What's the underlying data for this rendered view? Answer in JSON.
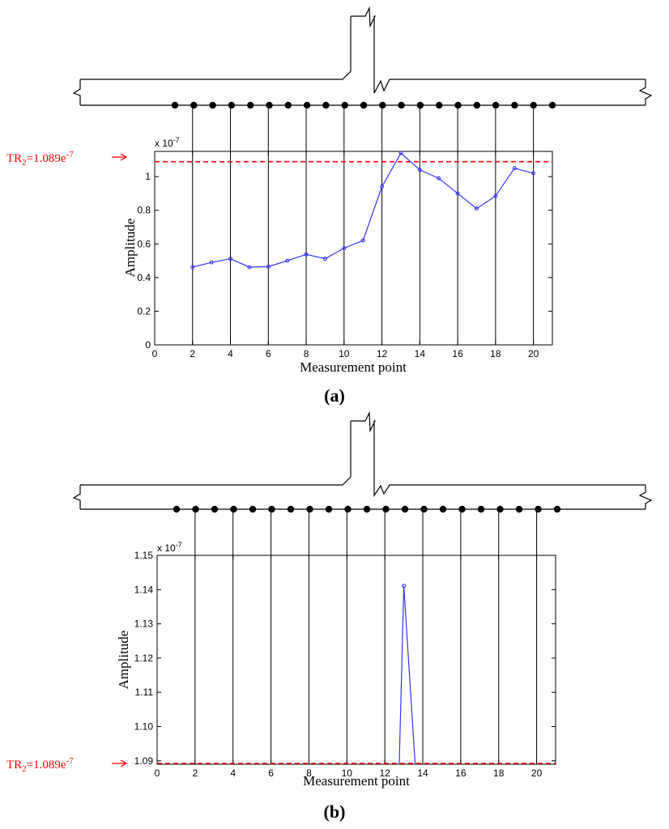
{
  "colors": {
    "series": "#3333ff",
    "threshold": "#ff0000",
    "structure": "#000000"
  },
  "chart_data": [
    {
      "panel": "(a)",
      "type": "line",
      "xlabel": "Measurement point",
      "ylabel": "Amplitude",
      "exponent_label": "x 10-7",
      "xlim": [
        0,
        21
      ],
      "ylim": [
        0,
        1.15
      ],
      "xticks": [
        0,
        2,
        4,
        6,
        8,
        10,
        12,
        14,
        16,
        18,
        20
      ],
      "yticks": [
        0,
        0.2,
        0.4,
        0.6,
        0.8,
        1
      ],
      "threshold": {
        "label": "TR2=1.089e-7",
        "value": 1.089
      },
      "x": [
        2,
        3,
        4,
        5,
        6,
        7,
        8,
        9,
        10,
        11,
        12,
        13,
        14,
        15,
        16,
        17,
        18,
        19,
        20
      ],
      "y": [
        0.462,
        0.49,
        0.512,
        0.462,
        0.465,
        0.5,
        0.538,
        0.512,
        0.575,
        0.62,
        0.94,
        1.14,
        1.04,
        0.99,
        0.9,
        0.81,
        0.885,
        1.05,
        1.02
      ],
      "measurement_points": [
        1,
        2,
        3,
        4,
        5,
        6,
        7,
        8,
        9,
        10,
        11,
        12,
        13,
        14,
        15,
        16,
        17,
        18,
        19,
        20
      ]
    },
    {
      "panel": "(b)",
      "type": "line",
      "xlabel": "Measurement point",
      "ylabel": "Amplitude",
      "exponent_label": "x 10-7",
      "xlim": [
        0,
        21
      ],
      "ylim": [
        1.089,
        1.15
      ],
      "xticks": [
        0,
        2,
        4,
        6,
        8,
        10,
        12,
        14,
        16,
        18,
        20
      ],
      "yticks": [
        1.09,
        1.1,
        1.11,
        1.12,
        1.13,
        1.14,
        1.15
      ],
      "threshold": {
        "label": "TR2=1.089e-7",
        "value": 1.089
      },
      "x": [
        12.76,
        13,
        13.6
      ],
      "y": [
        1.089,
        1.1411,
        1.089
      ],
      "measurement_points": [
        1,
        2,
        3,
        4,
        5,
        6,
        7,
        8,
        9,
        10,
        11,
        12,
        13,
        14,
        15,
        16,
        17,
        18,
        19,
        20
      ]
    }
  ]
}
